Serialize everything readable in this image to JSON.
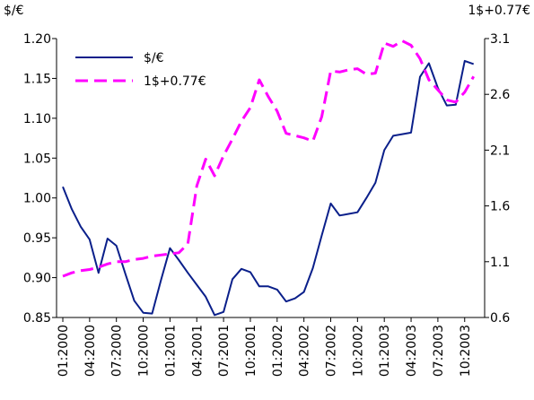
{
  "chart_data": {
    "type": "line",
    "ylabel_left": "$/€",
    "ylabel_right": "1$+0.77€",
    "ylim_left": [
      0.85,
      1.2
    ],
    "ylim_right": [
      0.6,
      3.1
    ],
    "yticks_left": [
      "0.85",
      "0.90",
      "0.95",
      "1.00",
      "1.05",
      "1.10",
      "1.15",
      "1.20"
    ],
    "yticks_right": [
      "0.6",
      "1.1",
      "1.6",
      "2.1",
      "2.6",
      "3.1"
    ],
    "xtick_labels": [
      "01:2000",
      "04:2000",
      "07:2000",
      "10:2000",
      "01:2001",
      "04:2001",
      "07:2001",
      "10:2001",
      "01:2002",
      "04:2002",
      "07:2002",
      "10:2002",
      "01:2003",
      "04:2003",
      "07:2003",
      "10:2003"
    ],
    "x": [
      "01:2000",
      "02:2000",
      "03:2000",
      "04:2000",
      "05:2000",
      "06:2000",
      "07:2000",
      "08:2000",
      "09:2000",
      "10:2000",
      "11:2000",
      "12:2000",
      "01:2001",
      "02:2001",
      "03:2001",
      "04:2001",
      "05:2001",
      "06:2001",
      "07:2001",
      "08:2001",
      "09:2001",
      "10:2001",
      "11:2001",
      "12:2001",
      "01:2002",
      "02:2002",
      "03:2002",
      "04:2002",
      "05:2002",
      "06:2002",
      "07:2002",
      "08:2002",
      "09:2002",
      "10:2002",
      "11:2002",
      "12:2002",
      "01:2003",
      "02:2003",
      "03:2003",
      "04:2003",
      "05:2003",
      "06:2003",
      "07:2003",
      "08:2003",
      "09:2003",
      "10:2003",
      "11:2003",
      "12:2003"
    ],
    "series": [
      {
        "name": "$/€",
        "axis": "left",
        "color": "#0a1f8a",
        "style": "solid",
        "values": [
          1.014,
          0.986,
          0.964,
          0.948,
          0.906,
          0.949,
          0.94,
          0.905,
          0.871,
          0.856,
          0.855,
          0.897,
          0.937,
          0.922,
          0.906,
          0.891,
          0.876,
          0.853,
          0.857,
          0.898,
          0.911,
          0.907,
          0.889,
          0.889,
          0.885,
          0.87,
          0.874,
          0.882,
          0.912,
          0.953,
          0.993,
          0.978,
          0.98,
          0.982,
          1.0,
          1.019,
          1.06,
          1.078,
          1.08,
          1.082,
          1.152,
          1.169,
          1.138,
          1.116,
          1.117,
          1.172,
          1.168,
          null
        ]
      },
      {
        "name": "1$+0.77€",
        "axis": "right",
        "color": "#ff00ff",
        "style": "dashed",
        "values": [
          0.97,
          1.0,
          1.02,
          1.03,
          1.05,
          1.08,
          1.1,
          1.1,
          1.12,
          1.13,
          1.15,
          1.16,
          1.17,
          1.18,
          1.26,
          1.78,
          2.02,
          1.87,
          2.05,
          2.2,
          2.36,
          2.48,
          2.73,
          2.58,
          2.45,
          2.25,
          2.23,
          2.21,
          2.18,
          2.4,
          2.81,
          2.8,
          2.82,
          2.83,
          2.78,
          2.79,
          3.06,
          3.03,
          3.08,
          3.04,
          2.92,
          2.73,
          2.64,
          2.55,
          2.53,
          2.62,
          2.76,
          null
        ]
      }
    ],
    "legend": [
      {
        "label": "$/€",
        "color": "#0a1f8a",
        "style": "solid"
      },
      {
        "label": "1$+0.77€",
        "color": "#ff00ff",
        "style": "dashed"
      }
    ],
    "legend_position": "top-left",
    "grid": false
  }
}
